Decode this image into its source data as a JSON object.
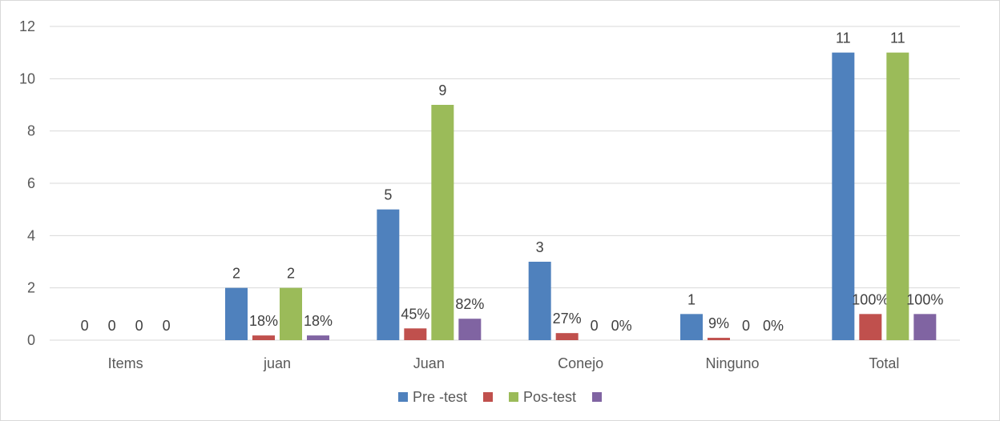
{
  "chart_data": {
    "type": "bar",
    "categories": [
      "Items",
      "juan",
      "Juan",
      "Conejo",
      "Ninguno",
      "Total"
    ],
    "ylim": [
      0,
      12
    ],
    "yticks": [
      0,
      2,
      4,
      6,
      8,
      10,
      12
    ],
    "grid": true,
    "legend_position": "bottom",
    "series": [
      {
        "name": "Pre -test",
        "color": "#4f81bd",
        "values": [
          0,
          2,
          5,
          3,
          1,
          11
        ],
        "labels": [
          "0",
          "2",
          "5",
          "3",
          "1",
          "11"
        ]
      },
      {
        "name": "",
        "color": "#c0504d",
        "values": [
          0,
          0.18,
          0.45,
          0.27,
          0.09,
          1
        ],
        "labels": [
          "0",
          "18%",
          "45%",
          "27%",
          "9%",
          "100%"
        ]
      },
      {
        "name": "Pos-test",
        "color": "#9bbb59",
        "values": [
          0,
          2,
          9,
          0,
          0,
          11
        ],
        "labels": [
          "0",
          "2",
          "9",
          "0",
          "0",
          "11"
        ]
      },
      {
        "name": "",
        "color": "#8064a2",
        "values": [
          0,
          0.18,
          0.82,
          0,
          0,
          1
        ],
        "labels": [
          "0",
          "18%",
          "82%",
          "0%",
          "0%",
          "100%"
        ]
      }
    ]
  }
}
